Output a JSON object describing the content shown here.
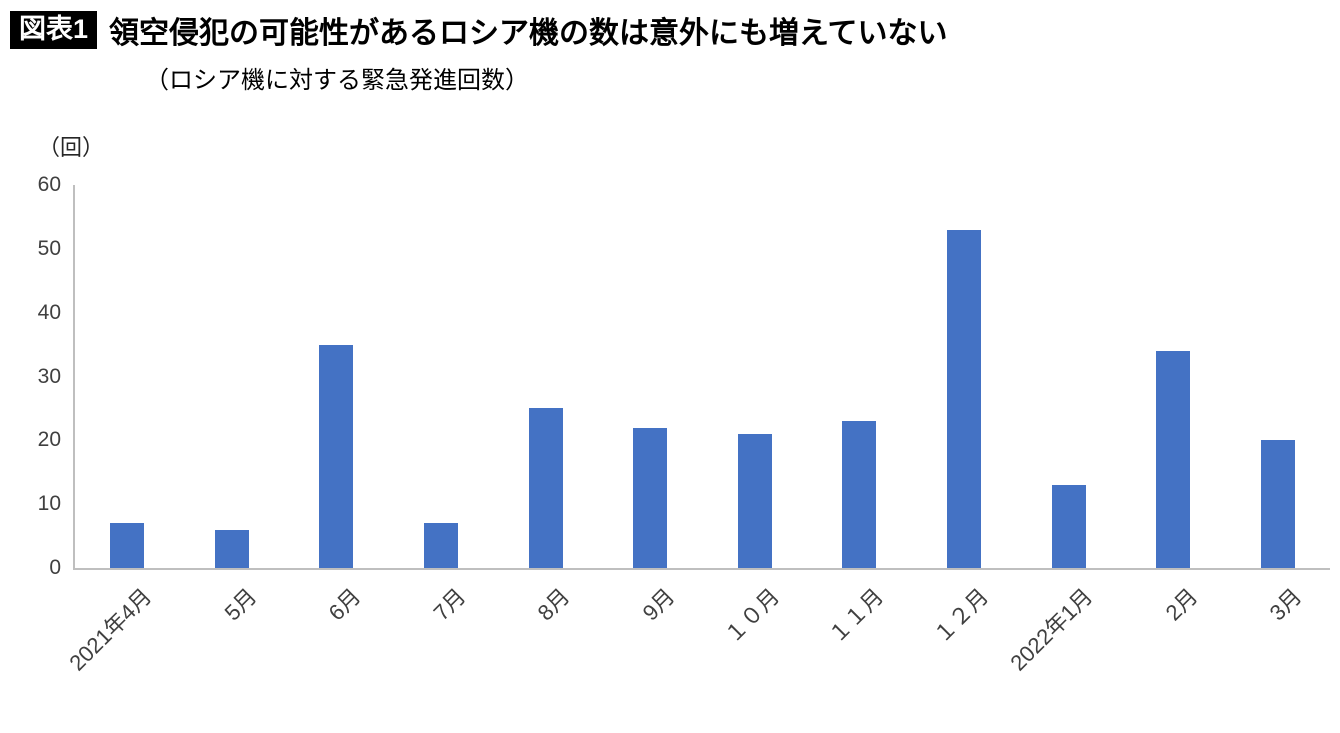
{
  "header": {
    "badge": "図表1",
    "title": "領空侵犯の可能性があるロシア機の数は意外にも増えていない",
    "subtitle": "（ロシア機に対する緊急発進回数）"
  },
  "chart_data": {
    "type": "bar",
    "title": "領空侵犯の可能性があるロシア機の数は意外にも増えていない",
    "subtitle": "（ロシア機に対する緊急発進回数）",
    "unit_label": "（回）",
    "categories": [
      "2021年4月",
      "5月",
      "6月",
      "7月",
      "8月",
      "9月",
      "１０月",
      "１１月",
      "１２月",
      "2022年1月",
      "2月",
      "3月"
    ],
    "values": [
      7,
      6,
      35,
      7,
      25,
      22,
      21,
      23,
      53,
      13,
      34,
      20
    ],
    "xlabel": "",
    "ylabel": "（回）",
    "ylim": [
      0,
      60
    ],
    "yticks": [
      0,
      10,
      20,
      30,
      40,
      50,
      60
    ],
    "grid": false,
    "legend": false,
    "bar_color": "#4472C4",
    "axis_color": "#bfbfbf",
    "tick_label_color": "#404040"
  }
}
